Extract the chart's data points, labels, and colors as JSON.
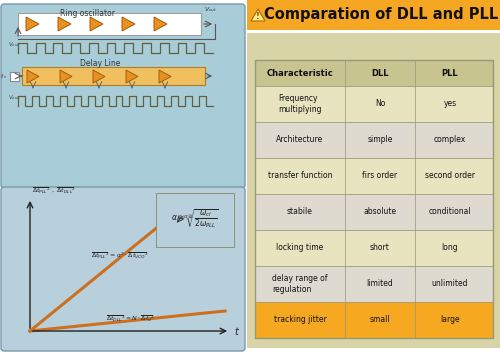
{
  "title": "Comparation of DLL and PLL",
  "title_bg": "#F5A623",
  "title_color": "#111111",
  "bg_color": "#FFFFFF",
  "left_panel_bg": "#A8CDD8",
  "graph_bg": "#B8D0DC",
  "table_outer_bg": "#D8D4A8",
  "table_header_bg": "#C8C490",
  "table_row_bg1": "#E8E4C0",
  "table_row_bg2": "#DEDAD0",
  "table_highlight_bg": "#F5A820",
  "table_border": "#999977",
  "orange_color": "#E89020",
  "orange_border": "#A06010",
  "signal_color": "#606040",
  "line_dll": "#CC7020",
  "line_pll": "#CC7020",
  "line_pll_dash": "#CC2020",
  "characteristics": [
    [
      "Characteristic",
      "DLL",
      "PLL"
    ],
    [
      "Frequency\nmultiplying",
      "No",
      "yes"
    ],
    [
      "Architecture",
      "simple",
      "complex"
    ],
    [
      "transfer function",
      "firs order",
      "second order"
    ],
    [
      "stabile",
      "absolute",
      "conditional"
    ],
    [
      "locking time",
      "short",
      "long"
    ],
    [
      "delay range of\nregulation",
      "limited",
      "unlimited"
    ],
    [
      "tracking jitter",
      "small",
      "large"
    ]
  ],
  "row_highlights": [
    0,
    0,
    0,
    0,
    0,
    0,
    0,
    1
  ]
}
